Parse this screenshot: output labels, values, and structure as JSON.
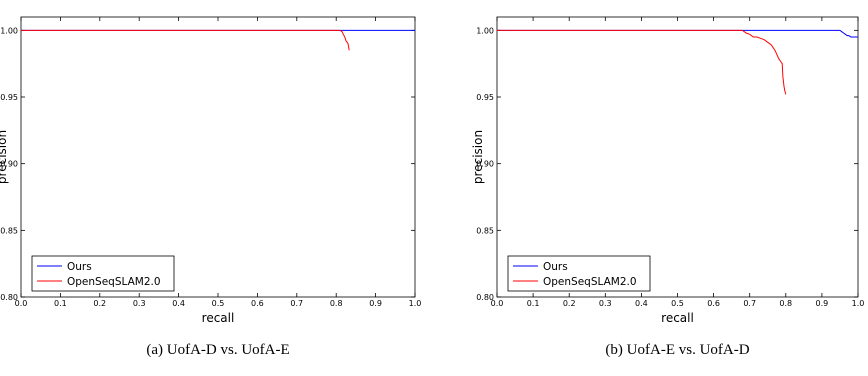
{
  "chart_data": [
    {
      "type": "line",
      "caption": "(a) UofA-D vs. UofA-E",
      "xlabel": "recall",
      "ylabel": "precision",
      "xlim": [
        0.0,
        1.0
      ],
      "ylim": [
        0.8,
        1.01
      ],
      "xticks": [
        "0.0",
        "0.1",
        "0.2",
        "0.3",
        "0.4",
        "0.5",
        "0.6",
        "0.7",
        "0.8",
        "0.9",
        "1.0"
      ],
      "yticks": [
        "0.80",
        "0.85",
        "0.90",
        "0.95",
        "1.00"
      ],
      "ytick_values": [
        0.8,
        0.85,
        0.9,
        0.95,
        1.0
      ],
      "legend_position": "bottom-left",
      "series": [
        {
          "name": "Ours",
          "color": "#0000ff",
          "x": [
            0.0,
            0.82,
            1.0
          ],
          "y": [
            1.0,
            1.0,
            1.0
          ]
        },
        {
          "name": "OpenSeqSLAM2.0",
          "color": "#ff0000",
          "x": [
            0.0,
            0.81,
            0.815,
            0.818,
            0.82,
            0.823,
            0.825,
            0.828,
            0.83,
            0.833
          ],
          "y": [
            1.0,
            1.0,
            0.999,
            0.997,
            0.996,
            0.994,
            0.992,
            0.991,
            0.99,
            0.985
          ]
        }
      ]
    },
    {
      "type": "line",
      "caption": "(b) UofA-E vs. UofA-D",
      "xlabel": "recall",
      "ylabel": "precision",
      "xlim": [
        0.0,
        1.0
      ],
      "ylim": [
        0.8,
        1.01
      ],
      "xticks": [
        "0.0",
        "0.1",
        "0.2",
        "0.3",
        "0.4",
        "0.5",
        "0.6",
        "0.7",
        "0.8",
        "0.9",
        "1.0"
      ],
      "yticks": [
        "0.80",
        "0.85",
        "0.90",
        "0.95",
        "1.00"
      ],
      "ytick_values": [
        0.8,
        0.85,
        0.9,
        0.95,
        1.0
      ],
      "legend_position": "bottom-left",
      "series": [
        {
          "name": "Ours",
          "color": "#0000ff",
          "x": [
            0.0,
            0.95,
            0.955,
            0.96,
            0.965,
            0.97,
            0.975,
            0.98,
            0.99,
            1.0
          ],
          "y": [
            1.0,
            1.0,
            0.999,
            0.998,
            0.997,
            0.996,
            0.996,
            0.995,
            0.995,
            0.995
          ]
        },
        {
          "name": "OpenSeqSLAM2.0",
          "color": "#ff0000",
          "x": [
            0.0,
            0.68,
            0.69,
            0.7,
            0.71,
            0.72,
            0.73,
            0.74,
            0.75,
            0.76,
            0.765,
            0.77,
            0.775,
            0.78,
            0.785,
            0.79,
            0.792,
            0.795,
            0.797,
            0.8
          ],
          "y": [
            1.0,
            1.0,
            0.998,
            0.997,
            0.995,
            0.995,
            0.994,
            0.993,
            0.991,
            0.989,
            0.987,
            0.985,
            0.982,
            0.979,
            0.977,
            0.975,
            0.965,
            0.958,
            0.955,
            0.952
          ]
        }
      ]
    }
  ]
}
